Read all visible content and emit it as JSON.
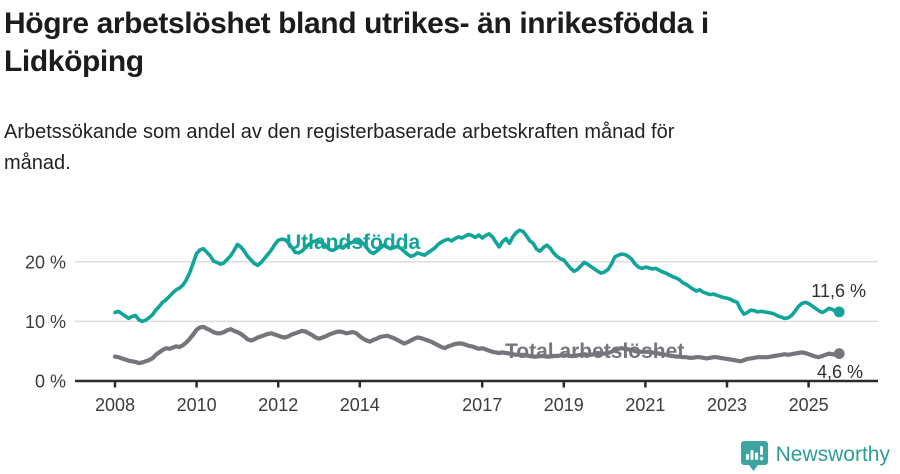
{
  "header": {
    "title_lines": [
      "Högre arbetslöshet bland utrikes- än inrikesfödda i",
      "Lidköping"
    ],
    "subtitle_lines": [
      "Arbetssökande som andel av den registerbaserade arbetskraften månad för",
      "månad."
    ]
  },
  "chart_data": {
    "type": "line",
    "title": "Högre arbetslöshet bland utrikes- än inrikesfödda i Lidköping",
    "subtitle": "Arbetssökande som andel av den registerbaserade arbetskraften månad för månad.",
    "unit": "%",
    "frequency": "monthly",
    "grid": "horizontal",
    "legend_position": "inline-labels",
    "x_axis": {
      "start_year": 2008,
      "start_month": 1,
      "end_year": 2025,
      "end_month": 10,
      "tick_labels": [
        "2008",
        "2010",
        "2012",
        "2014",
        "2017",
        "2019",
        "2021",
        "2023",
        "2025"
      ],
      "tick_years": [
        2008,
        2010,
        2012,
        2014,
        2017,
        2019,
        2021,
        2023,
        2025
      ]
    },
    "y_axis": {
      "tick_labels": [
        "0 %",
        "10 %",
        "20 %"
      ],
      "tick_values": [
        0,
        10,
        20
      ],
      "ylim": [
        0,
        27
      ]
    },
    "series": [
      {
        "name": "Utlandsfödda",
        "label": "Utlandsfödda",
        "color": "#10A49A",
        "end_label": "11,6 %",
        "end_value": 11.6,
        "values": [
          11.5,
          11.7,
          11.3,
          10.9,
          10.5,
          10.8,
          11.0,
          10.3,
          10.0,
          10.2,
          10.6,
          11.1,
          11.9,
          12.5,
          13.2,
          13.6,
          14.2,
          14.8,
          15.3,
          15.6,
          16.1,
          17.0,
          18.2,
          19.8,
          21.4,
          22.0,
          22.2,
          21.6,
          21.0,
          20.1,
          19.9,
          19.6,
          19.8,
          20.4,
          21.0,
          21.9,
          22.9,
          22.5,
          21.8,
          20.9,
          20.3,
          19.7,
          19.4,
          19.9,
          20.6,
          21.3,
          22.0,
          22.9,
          23.6,
          23.8,
          23.7,
          23.2,
          22.4,
          21.6,
          21.5,
          21.8,
          22.4,
          22.9,
          23.3,
          23.5,
          23.4,
          23.2,
          22.7,
          22.1,
          21.9,
          22.2,
          22.6,
          22.3,
          22.8,
          23.1,
          23.3,
          23.4,
          23.5,
          23.1,
          22.4,
          21.7,
          21.4,
          21.8,
          22.3,
          22.8,
          22.5,
          22.2,
          22.4,
          22.6,
          22.3,
          21.8,
          21.3,
          20.9,
          21.1,
          21.5,
          21.3,
          21.1,
          21.5,
          21.9,
          22.3,
          22.9,
          23.3,
          23.6,
          23.8,
          23.5,
          23.9,
          24.2,
          24.0,
          24.3,
          24.6,
          24.4,
          24.1,
          24.5,
          24.0,
          24.4,
          24.7,
          24.2,
          23.3,
          22.5,
          23.4,
          23.9,
          23.1,
          24.2,
          24.9,
          25.3,
          25.1,
          24.4,
          23.5,
          23.1,
          22.1,
          21.8,
          22.4,
          22.8,
          22.3,
          21.5,
          20.9,
          20.5,
          20.3,
          19.6,
          18.9,
          18.4,
          18.7,
          19.3,
          19.9,
          19.6,
          19.2,
          18.8,
          18.4,
          18.1,
          18.3,
          18.7,
          19.6,
          20.8,
          21.1,
          21.3,
          21.2,
          20.9,
          20.4,
          19.6,
          19.1,
          18.9,
          19.1,
          19.0,
          18.8,
          18.9,
          18.6,
          18.3,
          18.1,
          17.8,
          17.5,
          17.3,
          17.0,
          16.5,
          16.2,
          15.8,
          15.4,
          15.1,
          15.3,
          14.9,
          14.7,
          14.5,
          14.6,
          14.4,
          14.2,
          14.0,
          13.9,
          13.7,
          13.4,
          13.2,
          12.0,
          11.2,
          11.5,
          11.9,
          11.8,
          11.6,
          11.7,
          11.6,
          11.5,
          11.4,
          11.2,
          10.9,
          10.7,
          10.5,
          10.6,
          11.0,
          11.7,
          12.5,
          13.0,
          13.2,
          13.0,
          12.6,
          12.2,
          11.8,
          11.5,
          11.8,
          12.2,
          12.0,
          11.7,
          11.6
        ]
      },
      {
        "name": "Total arbetslöshet",
        "label": "Total arbetslöshet",
        "color": "#76757B",
        "end_label": "4,6 %",
        "end_value": 4.6,
        "values": [
          4.1,
          4.0,
          3.8,
          3.6,
          3.4,
          3.3,
          3.2,
          3.0,
          3.1,
          3.3,
          3.5,
          3.8,
          4.4,
          4.8,
          5.2,
          5.5,
          5.4,
          5.6,
          5.8,
          5.7,
          6.0,
          6.5,
          7.1,
          7.8,
          8.6,
          9.0,
          9.1,
          8.8,
          8.5,
          8.2,
          8.0,
          8.0,
          8.2,
          8.5,
          8.7,
          8.4,
          8.2,
          7.9,
          7.5,
          7.0,
          6.8,
          7.0,
          7.3,
          7.5,
          7.7,
          7.9,
          8.0,
          7.8,
          7.6,
          7.4,
          7.3,
          7.5,
          7.8,
          8.0,
          8.2,
          8.4,
          8.3,
          8.0,
          7.7,
          7.3,
          7.1,
          7.3,
          7.5,
          7.8,
          8.0,
          8.2,
          8.3,
          8.2,
          8.0,
          8.1,
          8.2,
          8.0,
          7.5,
          7.1,
          6.8,
          6.6,
          6.9,
          7.1,
          7.4,
          7.5,
          7.6,
          7.4,
          7.2,
          6.9,
          6.6,
          6.3,
          6.5,
          6.8,
          7.1,
          7.3,
          7.2,
          7.0,
          6.8,
          6.6,
          6.3,
          6.0,
          5.7,
          5.5,
          5.8,
          6.0,
          6.2,
          6.3,
          6.3,
          6.1,
          5.9,
          5.8,
          5.6,
          5.4,
          5.5,
          5.3,
          5.1,
          4.9,
          4.8,
          4.7,
          4.8,
          4.7,
          4.6,
          4.5,
          4.4,
          4.4,
          4.4,
          4.3,
          4.2,
          4.1,
          4.1,
          4.2,
          4.2,
          4.1,
          4.1,
          4.2,
          4.2,
          4.3,
          4.3,
          4.3,
          4.2,
          4.2,
          4.3,
          4.4,
          4.5,
          4.4,
          4.4,
          4.5,
          4.5,
          4.6,
          4.6,
          4.7,
          4.9,
          5.2,
          5.4,
          5.5,
          5.4,
          5.3,
          5.2,
          5.0,
          4.9,
          4.9,
          4.9,
          4.9,
          4.8,
          4.7,
          4.6,
          4.5,
          4.4,
          4.3,
          4.2,
          4.1,
          4.1,
          4.0,
          4.0,
          3.9,
          3.9,
          4.0,
          4.0,
          3.9,
          3.8,
          3.9,
          4.0,
          4.0,
          3.9,
          3.8,
          3.7,
          3.6,
          3.5,
          3.4,
          3.3,
          3.5,
          3.7,
          3.8,
          3.9,
          4.0,
          4.0,
          4.0,
          4.0,
          4.1,
          4.2,
          4.3,
          4.4,
          4.5,
          4.4,
          4.5,
          4.6,
          4.7,
          4.8,
          4.7,
          4.5,
          4.3,
          4.1,
          4.0,
          4.2,
          4.4,
          4.6,
          4.5,
          4.4,
          4.6
        ]
      }
    ]
  },
  "footer": {
    "brand": "Newsworthy",
    "logo_icon": "bar-chart-speech-bubble-icon"
  },
  "colors": {
    "accent_teal": "#10A49A",
    "series_gray": "#76757B",
    "brand_teal": "#2E9D99",
    "grid_gray": "#DCDCDC",
    "axis_dark": "#2B2B2B",
    "text_dark": "#1C1C1C"
  }
}
